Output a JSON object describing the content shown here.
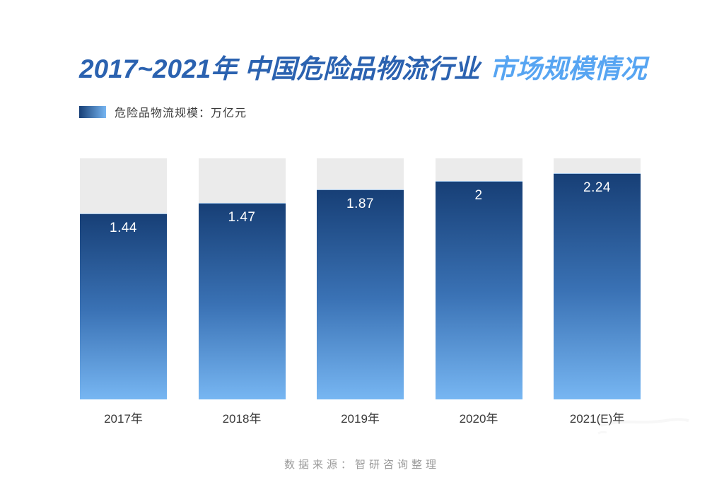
{
  "header": {
    "title_part1": "2017~2021年 中国危险品物流行业",
    "title_part2": "市场规模情况"
  },
  "legend": {
    "label": "危险品物流规模：万亿元"
  },
  "footer": {
    "source": "数据来源：智研咨询整理"
  },
  "colors": {
    "title_primary": "#2b62b0",
    "title_accent": "#57a5f2",
    "bar_top": "#173f76",
    "bar_mid": "#3a72b5",
    "bar_bottom": "#77b6f2",
    "track": "#ebebeb",
    "value_label": "#ffffff",
    "axis_label": "#3a3a3a",
    "source_text": "#9a9a9a"
  },
  "chart_data": {
    "type": "bar",
    "title": "2017~2021年 中国危险品物流行业 市场规模情况",
    "series_name": "危险品物流规模",
    "unit": "万亿元",
    "categories": [
      "2017年",
      "2018年",
      "2019年",
      "2020年",
      "2021(E)年"
    ],
    "values": [
      1.44,
      1.47,
      1.87,
      2,
      2.24
    ],
    "value_labels": [
      "1.44",
      "1.47",
      "1.87",
      "2",
      "2.24"
    ],
    "source": "数据来源：智研咨询整理",
    "legend_position": "top-left",
    "grid": false,
    "background_track": true,
    "bar_heights_pct": [
      77.1,
      81.5,
      87.1,
      90.6,
      93.8
    ]
  }
}
